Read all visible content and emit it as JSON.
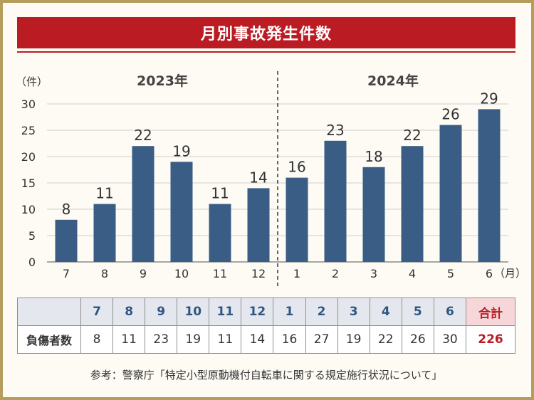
{
  "title": "月別事故発生件数",
  "source": "参考：警察庁「特定小型原動機付自転車に関する規定施行状況について」",
  "colors": {
    "bar": "#3a5d85",
    "title_bg": "#bb1c24",
    "frame": "#b59d5d",
    "total": "#bb1c24"
  },
  "chart_data": {
    "type": "bar",
    "y_unit": "（件）",
    "x_unit": "（月）",
    "year_labels": [
      "2023年",
      "2024年"
    ],
    "categories": [
      "7",
      "8",
      "9",
      "10",
      "11",
      "12",
      "1",
      "2",
      "3",
      "4",
      "5",
      "6"
    ],
    "values": [
      8,
      11,
      22,
      19,
      11,
      14,
      16,
      23,
      18,
      22,
      26,
      29
    ],
    "ylim": [
      0,
      30
    ],
    "yticks": [
      0,
      5,
      10,
      15,
      20,
      25,
      30
    ],
    "grid": true
  },
  "table": {
    "months": [
      "7",
      "8",
      "9",
      "10",
      "11",
      "12",
      "1",
      "2",
      "3",
      "4",
      "5",
      "6"
    ],
    "total_label": "合計",
    "row_label": "負傷者数",
    "values": [
      "8",
      "11",
      "23",
      "19",
      "11",
      "14",
      "16",
      "27",
      "19",
      "22",
      "26",
      "30"
    ],
    "total": "226"
  }
}
